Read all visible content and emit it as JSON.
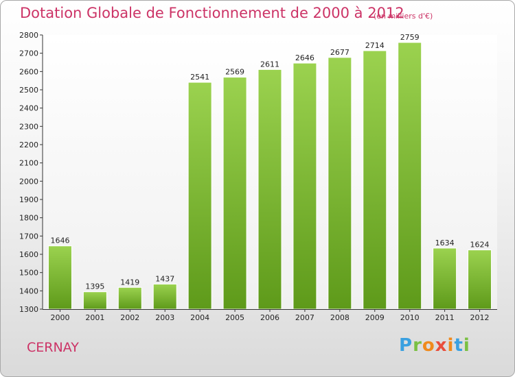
{
  "title": "Dotation Globale de Fonctionnement de 2000 à 2012",
  "unit": "(en milliers d'€)",
  "city": "CERNAY",
  "logo": "Proxiti",
  "colors": {
    "title": "#cc3366",
    "bar_light": "#9bd24f",
    "bar_dark": "#5e9a1a"
  },
  "chart_data": {
    "type": "bar",
    "categories": [
      "2000",
      "2001",
      "2002",
      "2003",
      "2004",
      "2005",
      "2006",
      "2007",
      "2008",
      "2009",
      "2010",
      "2011",
      "2012"
    ],
    "values": [
      1646,
      1395,
      1419,
      1437,
      2541,
      2569,
      2611,
      2646,
      2677,
      2714,
      2759,
      1634,
      1624
    ],
    "title": "Dotation Globale de Fonctionnement de 2000 à 2012",
    "xlabel": "",
    "ylabel": "",
    "ylim": [
      1300,
      2800
    ],
    "yticks": [
      1300,
      1400,
      1500,
      1600,
      1700,
      1800,
      1900,
      2000,
      2100,
      2200,
      2300,
      2400,
      2500,
      2600,
      2700,
      2800
    ],
    "grid": false,
    "data_labels": true
  }
}
